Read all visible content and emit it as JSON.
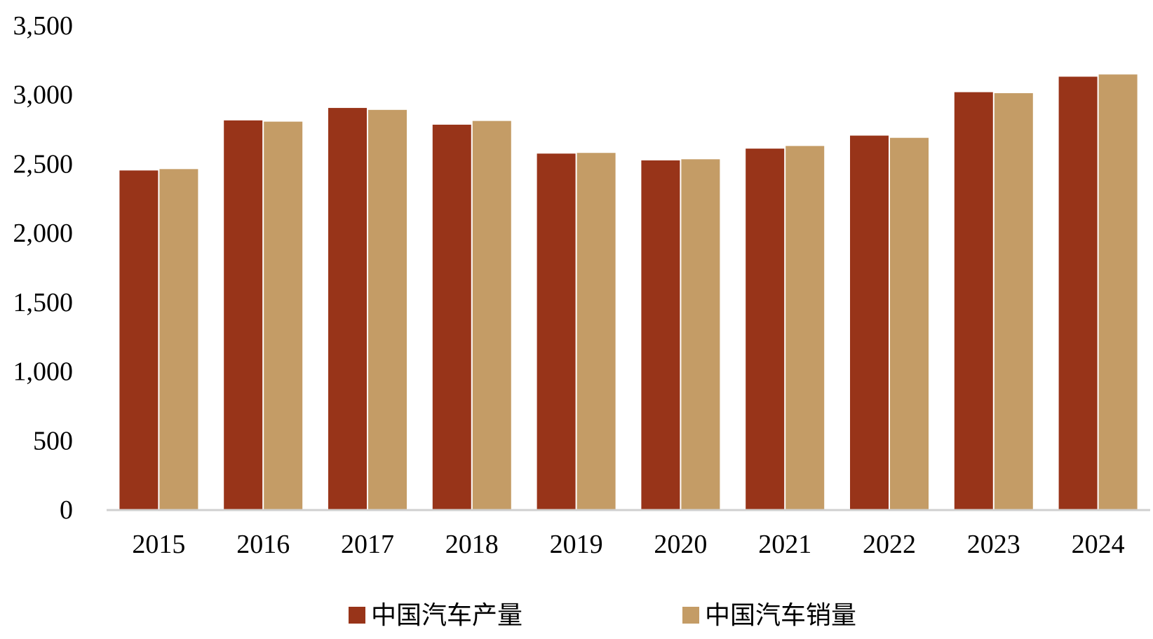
{
  "chart_data": {
    "type": "bar",
    "categories": [
      "2015",
      "2016",
      "2017",
      "2018",
      "2019",
      "2020",
      "2021",
      "2022",
      "2023",
      "2024"
    ],
    "series": [
      {
        "name": "中国汽车产量",
        "color": "#983419",
        "values": [
          2450,
          2812,
          2902,
          2781,
          2572,
          2523,
          2608,
          2702,
          3016,
          3128
        ]
      },
      {
        "name": "中国汽车销量",
        "color": "#C49C66",
        "values": [
          2460,
          2803,
          2888,
          2808,
          2577,
          2531,
          2627,
          2686,
          3009,
          3144
        ]
      }
    ],
    "y_ticks": [
      "0",
      "500",
      "1,000",
      "1,500",
      "2,000",
      "2,500",
      "3,000",
      "3,500"
    ],
    "ylim": [
      0,
      3500
    ],
    "title": "",
    "xlabel": "",
    "ylabel": "",
    "grid": false,
    "legend_position": "bottom-center"
  }
}
